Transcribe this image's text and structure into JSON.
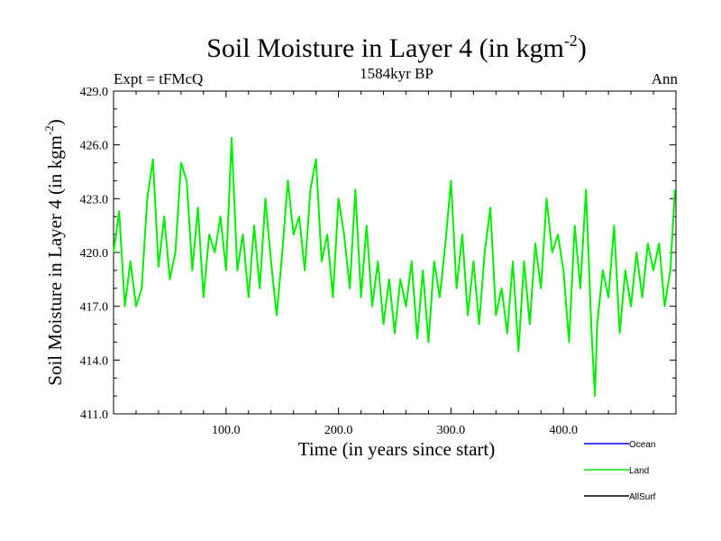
{
  "chart_data": {
    "type": "line",
    "title": "Soil Moisture in Layer 4 (in kgm",
    "title_sup": "-2",
    "title_end": ")",
    "subtitle": "1584kyr BP",
    "left_label": "Expt = tFMcQ",
    "right_label": "Ann",
    "xlabel": "Time (in years since start)",
    "ylabel": "Soil Moisture in Layer 4 (in kgm",
    "ylabel_sup": "-2",
    "ylabel_end": ")",
    "xlim": [
      0,
      500
    ],
    "ylim": [
      411.0,
      429.0
    ],
    "xticks": [
      100,
      200,
      300,
      400
    ],
    "xtick_labels": [
      "100.0",
      "200.0",
      "300.0",
      "400.0"
    ],
    "yticks": [
      411,
      414,
      417,
      420,
      423,
      426,
      429
    ],
    "ytick_labels": [
      "411.0",
      "414.0",
      "417.0",
      "420.0",
      "423.0",
      "426.0",
      "429.0"
    ],
    "series": [
      {
        "name": "Land",
        "color": "#00ee00",
        "x": [
          0,
          5,
          10,
          15,
          20,
          25,
          30,
          35,
          40,
          45,
          50,
          55,
          60,
          65,
          70,
          75,
          80,
          85,
          90,
          95,
          100,
          105,
          110,
          115,
          120,
          125,
          130,
          135,
          140,
          145,
          150,
          155,
          160,
          165,
          170,
          175,
          180,
          185,
          190,
          195,
          200,
          205,
          210,
          215,
          220,
          225,
          230,
          235,
          240,
          245,
          250,
          255,
          260,
          265,
          270,
          275,
          280,
          285,
          290,
          295,
          300,
          305,
          310,
          315,
          320,
          325,
          330,
          335,
          340,
          345,
          350,
          355,
          360,
          365,
          370,
          375,
          380,
          385,
          390,
          395,
          400,
          405,
          410,
          415,
          420,
          425,
          428,
          430,
          435,
          440,
          445,
          450,
          455,
          460,
          465,
          470,
          475,
          480,
          485,
          490,
          495,
          499
        ],
        "values": [
          420.0,
          422.3,
          417.0,
          419.5,
          417.0,
          418.0,
          423.0,
          425.2,
          419.2,
          422.0,
          418.5,
          420.0,
          425.0,
          424.0,
          419.0,
          422.5,
          417.5,
          421.0,
          420.0,
          422.0,
          419.0,
          426.4,
          419.0,
          421.0,
          417.5,
          421.5,
          418.0,
          423.0,
          419.5,
          416.5,
          420.0,
          424.0,
          421.0,
          422.0,
          419.0,
          423.5,
          425.2,
          419.5,
          421.0,
          417.5,
          423.0,
          421.0,
          418.0,
          423.5,
          417.5,
          421.5,
          417.0,
          419.5,
          416.0,
          418.5,
          415.5,
          418.5,
          417.0,
          419.5,
          415.2,
          419.0,
          415.0,
          419.5,
          417.5,
          420.5,
          424.0,
          418.0,
          421.0,
          416.5,
          419.5,
          416.0,
          420.0,
          422.5,
          416.5,
          418.0,
          415.5,
          419.5,
          414.5,
          419.5,
          416.0,
          420.5,
          418.0,
          423.0,
          420.0,
          421.0,
          419.0,
          415.0,
          421.5,
          418.0,
          423.5,
          415.5,
          412.0,
          416.0,
          419.0,
          417.5,
          421.5,
          415.5,
          419.0,
          417.0,
          420.0,
          417.5,
          420.5,
          419.0,
          420.5,
          417.0,
          419.0,
          423.5
        ]
      }
    ],
    "legend": [
      {
        "label": "Ocean",
        "color": "#0000ff"
      },
      {
        "label": "Land",
        "color": "#00ee00"
      },
      {
        "label": "AllSurf",
        "color": "#000000"
      }
    ]
  }
}
